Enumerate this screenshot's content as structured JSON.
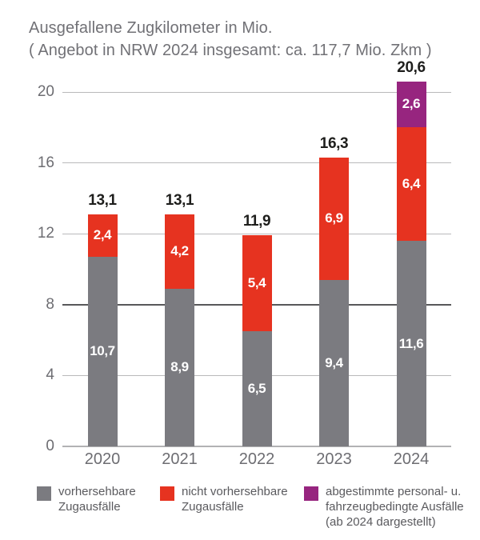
{
  "header": {
    "title_line1": "Ausgefallene Zugkilometer in Mio.",
    "title_line2": "( Angebot in NRW 2024 insgesamt: ca. 117,7 Mio. Zkm )"
  },
  "chart_data": {
    "type": "bar",
    "stacked": true,
    "title": "Ausgefallene Zugkilometer in Mio.",
    "subtitle": "( Angebot in NRW 2024 insgesamt: ca. 117,7 Mio. Zkm )",
    "categories": [
      "2020",
      "2021",
      "2022",
      "2023",
      "2024"
    ],
    "series": [
      {
        "name": "vorhersehbare Zugausfälle",
        "color": "#7b7b80",
        "values": [
          10.7,
          8.9,
          6.5,
          9.4,
          11.6
        ],
        "labels": [
          "10,7",
          "8,9",
          "6,5",
          "9,4",
          "11,6"
        ]
      },
      {
        "name": "nicht vorhersehbare Zugausfälle",
        "color": "#e63320",
        "values": [
          2.4,
          4.2,
          5.4,
          6.9,
          6.4
        ],
        "labels": [
          "2,4",
          "4,2",
          "5,4",
          "6,9",
          "6,4"
        ]
      },
      {
        "name": "abgestimmte personal- u. fahrzeugbedingte Ausfälle (ab 2024 dargestellt)",
        "color": "#97257f",
        "values": [
          0,
          0,
          0,
          0,
          2.6
        ],
        "labels": [
          "",
          "",
          "",
          "",
          "2,6"
        ]
      }
    ],
    "totals": [
      13.1,
      13.1,
      11.9,
      16.3,
      20.6
    ],
    "total_labels": [
      "13,1",
      "13,1",
      "11,9",
      "16,3",
      "20,6"
    ],
    "y_ticks": [
      0,
      4,
      8,
      12,
      16,
      20
    ],
    "y_tick_labels": [
      "0",
      "4",
      "8",
      "12",
      "16",
      "20"
    ],
    "ylim": [
      0,
      21
    ],
    "emphasized_gridline": 8,
    "grid": true,
    "legend_position": "bottom",
    "xlabel": "",
    "ylabel": ""
  },
  "legend": {
    "items": [
      {
        "color": "#7b7b80",
        "lines": [
          "vorhersehbare",
          "Zugausfälle"
        ]
      },
      {
        "color": "#e63320",
        "lines": [
          "nicht vorhersehbare",
          "Zugausfälle"
        ]
      },
      {
        "color": "#97257f",
        "lines": [
          "abgestimmte personal- u.",
          "fahrzeugbedingte Ausfälle",
          "(ab 2024 dargestellt)"
        ]
      }
    ]
  },
  "colors": {
    "background": "#ffffff",
    "title_text": "#717176",
    "axis_text": "#6d6d72",
    "total_label_text": "#1e1e1c",
    "segment_label_text": "#ffffff",
    "gridline": "#b9b9bb",
    "gridline_emphasized": "#58585a",
    "baseline": "#b2b2b4",
    "bar_gray": "#7b7b80",
    "bar_red": "#e63320",
    "bar_purple": "#97257f"
  }
}
